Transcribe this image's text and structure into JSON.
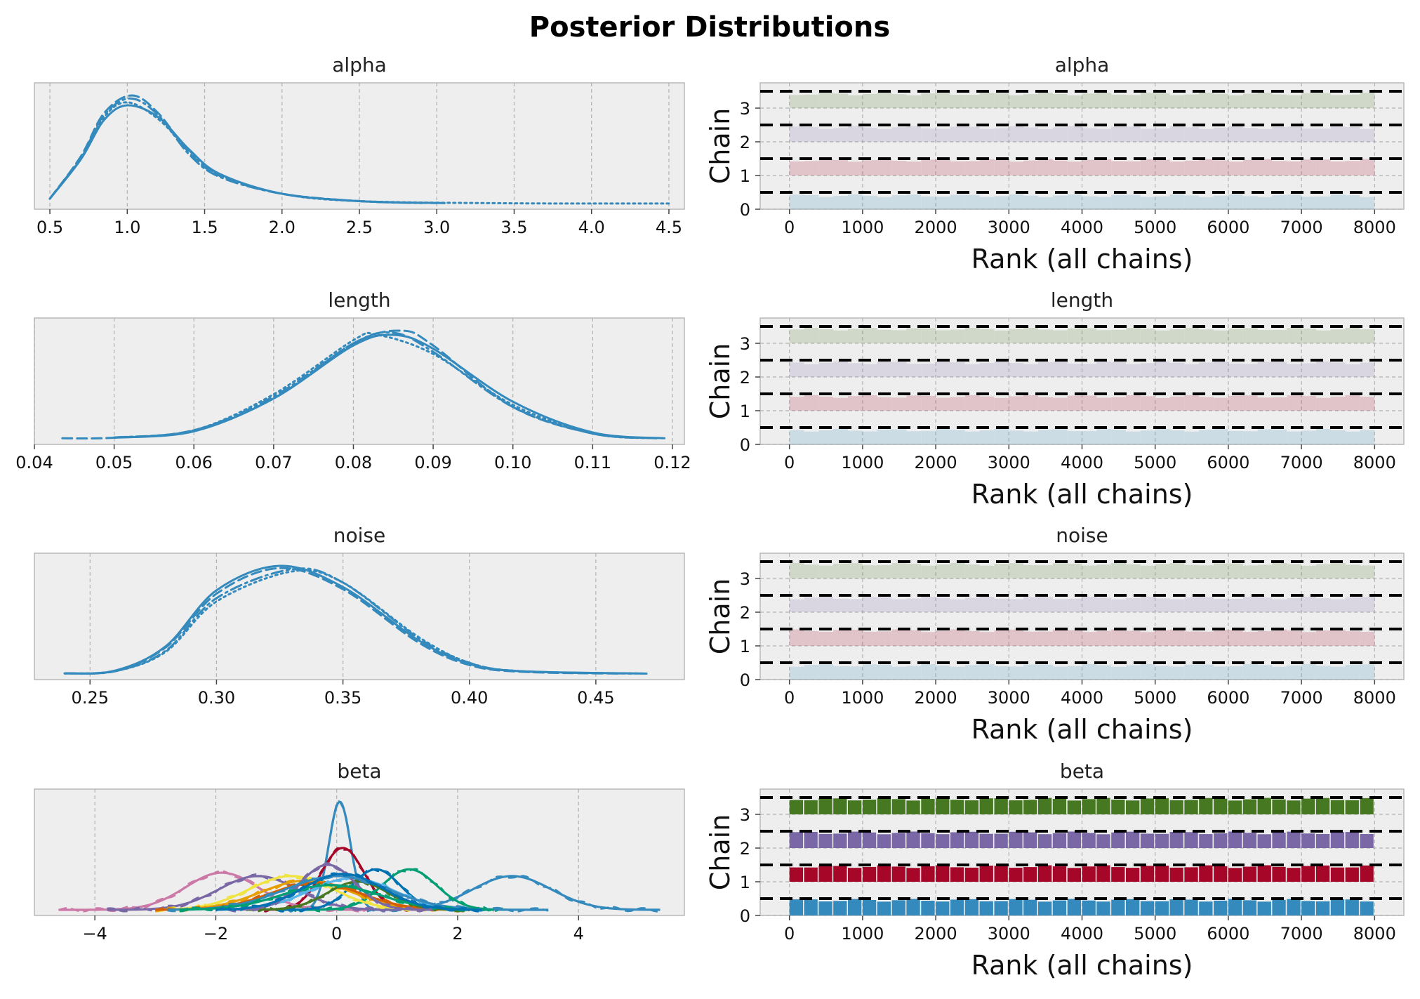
{
  "figure": {
    "title": "Posterior Distributions"
  },
  "chart_data": [
    {
      "type": "line",
      "kind": "density",
      "title": "alpha",
      "xlim": [
        0.4,
        4.6
      ],
      "xticks": [
        0.5,
        1.0,
        1.5,
        2.0,
        2.5,
        3.0,
        3.5,
        4.0,
        4.5
      ],
      "xtick_labels": [
        "0.5",
        "1.0",
        "1.5",
        "2.0",
        "2.5",
        "3.0",
        "3.5",
        "4.0",
        "4.5"
      ],
      "color": "#348ABD",
      "series": [
        {
          "linestyle": "solid",
          "x": [
            0.5,
            0.7,
            0.85,
            1.0,
            1.2,
            1.4,
            1.6,
            2.0,
            2.5,
            3.05
          ],
          "y": [
            0.05,
            0.45,
            0.85,
            1.0,
            0.88,
            0.55,
            0.3,
            0.1,
            0.025,
            0.005
          ]
        },
        {
          "linestyle": "dashed",
          "x": [
            0.5,
            0.7,
            0.85,
            1.03,
            1.2,
            1.4,
            1.6,
            2.0,
            2.5,
            3.0
          ],
          "y": [
            0.05,
            0.48,
            0.92,
            1.1,
            0.92,
            0.52,
            0.28,
            0.1,
            0.025,
            0.005
          ]
        },
        {
          "linestyle": "dashdot",
          "x": [
            0.5,
            0.7,
            0.85,
            1.02,
            1.2,
            1.4,
            1.6,
            2.0,
            2.5,
            2.9
          ],
          "y": [
            0.05,
            0.47,
            0.9,
            1.07,
            0.9,
            0.5,
            0.27,
            0.1,
            0.025,
            0.006
          ]
        },
        {
          "linestyle": "dotted",
          "x": [
            0.5,
            0.7,
            0.85,
            1.0,
            1.2,
            1.4,
            1.6,
            2.0,
            2.5,
            3.5,
            4.5
          ],
          "y": [
            0.05,
            0.46,
            0.88,
            1.03,
            0.86,
            0.54,
            0.29,
            0.1,
            0.025,
            0.003,
            0.001
          ]
        }
      ]
    },
    {
      "type": "bar",
      "kind": "rank",
      "title": "alpha",
      "xlabel": "Rank (all chains)",
      "ylabel": "Chain",
      "xlim": [
        -400,
        8400
      ],
      "xticks": [
        0,
        1000,
        2000,
        3000,
        4000,
        5000,
        6000,
        7000,
        8000
      ],
      "xtick_labels": [
        "0",
        "1000",
        "2000",
        "3000",
        "4000",
        "5000",
        "6000",
        "7000",
        "8000"
      ],
      "ylim": [
        0,
        3.75
      ],
      "yticks": [
        0,
        1,
        2,
        3
      ],
      "ytick_labels": [
        "0",
        "1",
        "2",
        "3"
      ],
      "range": [
        0,
        8000
      ],
      "separators": [
        0.5,
        1.5,
        2.5,
        3.5
      ],
      "chains": [
        {
          "offset": 0,
          "color": "#348ABD",
          "opacity": 0.18,
          "height": 0.4
        },
        {
          "offset": 1,
          "color": "#A60628",
          "opacity": 0.18,
          "height": 0.45
        },
        {
          "offset": 2,
          "color": "#7A68A6",
          "opacity": 0.18,
          "height": 0.42
        },
        {
          "offset": 3,
          "color": "#467821",
          "opacity": 0.18,
          "height": 0.42
        }
      ]
    },
    {
      "type": "line",
      "kind": "density",
      "title": "length",
      "xlim": [
        0.04,
        0.1215
      ],
      "xticks": [
        0.04,
        0.05,
        0.06,
        0.07,
        0.08,
        0.09,
        0.1,
        0.11,
        0.12
      ],
      "xtick_labels": [
        "0.04",
        "0.05",
        "0.06",
        "0.07",
        "0.08",
        "0.09",
        "0.10",
        "0.11",
        "0.12"
      ],
      "color": "#348ABD",
      "series": [
        {
          "linestyle": "solid",
          "x": [
            0.05,
            0.06,
            0.07,
            0.08,
            0.085,
            0.09,
            0.1,
            0.11,
            0.119
          ],
          "y": [
            0.01,
            0.07,
            0.38,
            0.88,
            0.98,
            0.85,
            0.35,
            0.06,
            0.005
          ]
        },
        {
          "linestyle": "dashed",
          "x": [
            0.0435,
            0.05,
            0.06,
            0.07,
            0.08,
            0.086,
            0.09,
            0.1,
            0.11,
            0.118
          ],
          "y": [
            0.005,
            0.01,
            0.08,
            0.38,
            0.9,
            1.02,
            0.88,
            0.3,
            0.05,
            0.005
          ]
        },
        {
          "linestyle": "dashdot",
          "x": [
            0.05,
            0.06,
            0.07,
            0.08,
            0.085,
            0.09,
            0.1,
            0.11,
            0.118
          ],
          "y": [
            0.012,
            0.08,
            0.4,
            0.9,
            1.0,
            0.82,
            0.3,
            0.05,
            0.005
          ]
        },
        {
          "linestyle": "dotted",
          "x": [
            0.05,
            0.06,
            0.07,
            0.08,
            0.083,
            0.09,
            0.1,
            0.11,
            0.118
          ],
          "y": [
            0.012,
            0.08,
            0.42,
            0.93,
            0.98,
            0.8,
            0.32,
            0.05,
            0.005
          ]
        }
      ]
    },
    {
      "type": "bar",
      "kind": "rank",
      "title": "length",
      "xlabel": "Rank (all chains)",
      "ylabel": "Chain",
      "xlim": [
        -400,
        8400
      ],
      "xticks": [
        0,
        1000,
        2000,
        3000,
        4000,
        5000,
        6000,
        7000,
        8000
      ],
      "xtick_labels": [
        "0",
        "1000",
        "2000",
        "3000",
        "4000",
        "5000",
        "6000",
        "7000",
        "8000"
      ],
      "ylim": [
        0,
        3.75
      ],
      "yticks": [
        0,
        1,
        2,
        3
      ],
      "ytick_labels": [
        "0",
        "1",
        "2",
        "3"
      ],
      "range": [
        0,
        8000
      ],
      "separators": [
        0.5,
        1.5,
        2.5,
        3.5
      ],
      "chains": [
        {
          "offset": 0,
          "color": "#348ABD",
          "opacity": 0.18,
          "height": 0.42
        },
        {
          "offset": 1,
          "color": "#A60628",
          "opacity": 0.18,
          "height": 0.42
        },
        {
          "offset": 2,
          "color": "#7A68A6",
          "opacity": 0.18,
          "height": 0.42
        },
        {
          "offset": 3,
          "color": "#467821",
          "opacity": 0.18,
          "height": 0.42
        }
      ]
    },
    {
      "type": "line",
      "kind": "density",
      "title": "noise",
      "xlim": [
        0.228,
        0.485
      ],
      "xticks": [
        0.25,
        0.3,
        0.35,
        0.4,
        0.45
      ],
      "xtick_labels": [
        "0.25",
        "0.30",
        "0.35",
        "0.40",
        "0.45"
      ],
      "color": "#348ABD",
      "series": [
        {
          "linestyle": "solid",
          "x": [
            0.24,
            0.26,
            0.28,
            0.3,
            0.325,
            0.35,
            0.38,
            0.4,
            0.42,
            0.47
          ],
          "y": [
            0.005,
            0.03,
            0.25,
            0.75,
            0.97,
            0.78,
            0.3,
            0.09,
            0.025,
            0.003
          ]
        },
        {
          "linestyle": "dashed",
          "x": [
            0.24,
            0.26,
            0.28,
            0.3,
            0.325,
            0.35,
            0.38,
            0.4,
            0.42,
            0.46
          ],
          "y": [
            0.005,
            0.03,
            0.24,
            0.72,
            0.95,
            0.76,
            0.28,
            0.08,
            0.02,
            0.003
          ]
        },
        {
          "linestyle": "dashdot",
          "x": [
            0.24,
            0.26,
            0.28,
            0.3,
            0.33,
            0.35,
            0.38,
            0.4,
            0.42,
            0.465
          ],
          "y": [
            0.005,
            0.025,
            0.21,
            0.68,
            0.94,
            0.82,
            0.32,
            0.1,
            0.025,
            0.003
          ]
        },
        {
          "linestyle": "dotted",
          "x": [
            0.24,
            0.26,
            0.28,
            0.3,
            0.33,
            0.35,
            0.38,
            0.4,
            0.42,
            0.47
          ],
          "y": [
            0.005,
            0.025,
            0.2,
            0.65,
            0.92,
            0.82,
            0.33,
            0.1,
            0.025,
            0.003
          ]
        }
      ]
    },
    {
      "type": "bar",
      "kind": "rank",
      "title": "noise",
      "xlabel": "Rank (all chains)",
      "ylabel": "Chain",
      "xlim": [
        -400,
        8400
      ],
      "xticks": [
        0,
        1000,
        2000,
        3000,
        4000,
        5000,
        6000,
        7000,
        8000
      ],
      "xtick_labels": [
        "0",
        "1000",
        "2000",
        "3000",
        "4000",
        "5000",
        "6000",
        "7000",
        "8000"
      ],
      "ylim": [
        0,
        3.75
      ],
      "yticks": [
        0,
        1,
        2,
        3
      ],
      "ytick_labels": [
        "0",
        "1",
        "2",
        "3"
      ],
      "range": [
        0,
        8000
      ],
      "separators": [
        0.5,
        1.5,
        2.5,
        3.5
      ],
      "chains": [
        {
          "offset": 0,
          "color": "#348ABD",
          "opacity": 0.18,
          "height": 0.42
        },
        {
          "offset": 1,
          "color": "#A60628",
          "opacity": 0.18,
          "height": 0.45
        },
        {
          "offset": 2,
          "color": "#7A68A6",
          "opacity": 0.18,
          "height": 0.42
        },
        {
          "offset": 3,
          "color": "#467821",
          "opacity": 0.18,
          "height": 0.42
        }
      ]
    },
    {
      "type": "line",
      "kind": "density-gaussian",
      "title": "beta",
      "xlim": [
        -5.0,
        5.75
      ],
      "xticks": [
        -4,
        -2,
        0,
        2,
        4
      ],
      "xtick_labels": [
        "−4",
        "−2",
        "0",
        "2",
        "4"
      ],
      "series": [
        {
          "color": "#348ABD",
          "mu": 0.05,
          "sigma": 0.18,
          "peak": 0.96,
          "range": [
            -0.8,
            0.9
          ]
        },
        {
          "color": "#A60628",
          "mu": 0.1,
          "sigma": 0.35,
          "peak": 0.55,
          "range": [
            -1.2,
            1.4
          ]
        },
        {
          "color": "#348ABD",
          "mu": 2.9,
          "sigma": 0.65,
          "peak": 0.3,
          "range": [
            0.5,
            5.35
          ]
        },
        {
          "color": "#CC79A7",
          "mu": -1.9,
          "sigma": 0.6,
          "peak": 0.33,
          "range": [
            -4.6,
            0.5
          ]
        },
        {
          "color": "#7A68A6",
          "mu": -1.3,
          "sigma": 0.65,
          "peak": 0.3,
          "range": [
            -3.8,
            1.0
          ]
        },
        {
          "color": "#009E73",
          "mu": 1.2,
          "sigma": 0.45,
          "peak": 0.36,
          "range": [
            -0.8,
            2.8
          ]
        },
        {
          "color": "#0072B2",
          "mu": 0.65,
          "sigma": 0.4,
          "peak": 0.36,
          "range": [
            -1.0,
            2.2
          ]
        },
        {
          "color": "#F0E442",
          "mu": -0.75,
          "sigma": 0.7,
          "peak": 0.3,
          "range": [
            -3.0,
            1.6
          ]
        },
        {
          "color": "#E69F00",
          "mu": -0.5,
          "sigma": 0.75,
          "peak": 0.26,
          "range": [
            -3.0,
            2.0
          ]
        },
        {
          "color": "#D55E00",
          "mu": -0.35,
          "sigma": 0.75,
          "peak": 0.24,
          "range": [
            -3.0,
            2.2
          ]
        },
        {
          "color": "#56B4E9",
          "mu": 0.25,
          "sigma": 0.7,
          "peak": 0.28,
          "range": [
            -2.0,
            2.5
          ]
        },
        {
          "color": "#467821",
          "mu": 0.35,
          "sigma": 0.5,
          "peak": 0.25,
          "range": [
            -1.5,
            2.2
          ]
        },
        {
          "color": "#7A68A6",
          "mu": -0.15,
          "sigma": 0.45,
          "peak": 0.4,
          "range": [
            -1.8,
            1.6
          ]
        },
        {
          "color": "#348ABD",
          "mu": 0.0,
          "sigma": 0.85,
          "peak": 0.3,
          "range": [
            -2.8,
            3.5
          ]
        },
        {
          "color": "#009E73",
          "mu": -0.1,
          "sigma": 0.8,
          "peak": 0.22,
          "range": [
            -2.6,
            2.6
          ]
        },
        {
          "color": "#0072B2",
          "mu": 0.1,
          "sigma": 0.65,
          "peak": 0.32,
          "range": [
            -2.0,
            2.4
          ]
        }
      ]
    },
    {
      "type": "bar",
      "kind": "rank",
      "title": "beta",
      "xlabel": "Rank (all chains)",
      "ylabel": "Chain",
      "xlim": [
        -400,
        8400
      ],
      "xticks": [
        0,
        1000,
        2000,
        3000,
        4000,
        5000,
        6000,
        7000,
        8000
      ],
      "xtick_labels": [
        "0",
        "1000",
        "2000",
        "3000",
        "4000",
        "5000",
        "6000",
        "7000",
        "8000"
      ],
      "ylim": [
        0,
        3.75
      ],
      "yticks": [
        0,
        1,
        2,
        3
      ],
      "ytick_labels": [
        "0",
        "1",
        "2",
        "3"
      ],
      "range": [
        0,
        8000
      ],
      "separators": [
        0.5,
        1.5,
        2.5,
        3.5
      ],
      "chains": [
        {
          "offset": 0,
          "color": "#348ABD",
          "opacity": 1.0,
          "height": 0.45
        },
        {
          "offset": 1,
          "color": "#A60628",
          "opacity": 1.0,
          "height": 0.45
        },
        {
          "offset": 2,
          "color": "#7A68A6",
          "opacity": 1.0,
          "height": 0.45
        },
        {
          "offset": 3,
          "color": "#467821",
          "opacity": 1.0,
          "height": 0.45
        }
      ]
    }
  ]
}
